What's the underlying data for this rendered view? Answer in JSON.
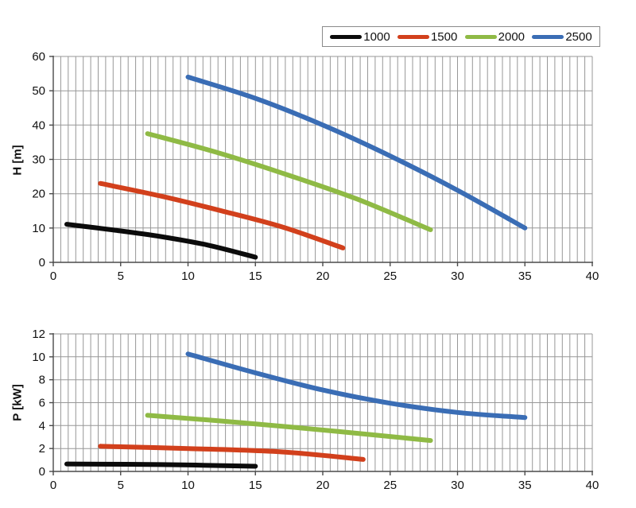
{
  "legend": {
    "items": [
      {
        "label": "1000",
        "color": "#0b0b0b"
      },
      {
        "label": "1500",
        "color": "#d2401c"
      },
      {
        "label": "2000",
        "color": "#8fba45"
      },
      {
        "label": "2500",
        "color": "#3a6db5"
      }
    ]
  },
  "colors": {
    "background": "#ffffff",
    "grid": "#979797",
    "axis": "#4a4a4a",
    "tick_text": "#111111"
  },
  "chart_data": [
    {
      "type": "line",
      "title": "",
      "xlabel": "",
      "ylabel": "H [m]",
      "xlim": [
        0,
        40
      ],
      "ylim": [
        0,
        60
      ],
      "x_ticks": [
        0,
        5,
        10,
        15,
        20,
        25,
        30,
        35,
        40
      ],
      "y_ticks": [
        0,
        10,
        20,
        30,
        40,
        50,
        60
      ],
      "grid": {
        "vertical_minor_divisions": 72,
        "horizontal_at_y_ticks": true
      },
      "legend_position": "top-right-outside",
      "series": [
        {
          "name": "1000",
          "color": "#0b0b0b",
          "points": [
            [
              1,
              11.1
            ],
            [
              4.5,
              9.4
            ],
            [
              8,
              7.5
            ],
            [
              11.5,
              5.0
            ],
            [
              15,
              1.5
            ]
          ]
        },
        {
          "name": "1500",
          "color": "#d2401c",
          "points": [
            [
              3.5,
              23
            ],
            [
              8,
              19.3
            ],
            [
              12.5,
              15
            ],
            [
              17,
              10.3
            ],
            [
              21.5,
              4.2
            ]
          ]
        },
        {
          "name": "2000",
          "color": "#8fba45",
          "points": [
            [
              7,
              37.5
            ],
            [
              12,
              32.2
            ],
            [
              17,
              26
            ],
            [
              22.5,
              18.5
            ],
            [
              28,
              9.5
            ]
          ]
        },
        {
          "name": "2500",
          "color": "#3a6db5",
          "points": [
            [
              10,
              54
            ],
            [
              15,
              47.8
            ],
            [
              20,
              40
            ],
            [
              25,
              31
            ],
            [
              30,
              21
            ],
            [
              35,
              10
            ]
          ]
        }
      ]
    },
    {
      "type": "line",
      "title": "",
      "xlabel": "",
      "ylabel": "P [kW]",
      "xlim": [
        0,
        40
      ],
      "ylim": [
        0,
        12
      ],
      "x_ticks": [
        0,
        5,
        10,
        15,
        20,
        25,
        30,
        35,
        40
      ],
      "y_ticks": [
        0,
        2,
        4,
        6,
        8,
        10,
        12
      ],
      "grid": {
        "vertical_minor_divisions": 72,
        "horizontal_at_y_ticks": true
      },
      "series": [
        {
          "name": "1000",
          "color": "#0b0b0b",
          "points": [
            [
              1,
              0.65
            ],
            [
              8,
              0.6
            ],
            [
              15,
              0.45
            ]
          ]
        },
        {
          "name": "1500",
          "color": "#d2401c",
          "points": [
            [
              3.5,
              2.2
            ],
            [
              10,
              2.0
            ],
            [
              17,
              1.7
            ],
            [
              23,
              1.05
            ]
          ]
        },
        {
          "name": "2000",
          "color": "#8fba45",
          "points": [
            [
              7,
              4.9
            ],
            [
              14,
              4.25
            ],
            [
              21,
              3.5
            ],
            [
              28,
              2.7
            ]
          ]
        },
        {
          "name": "2500",
          "color": "#3a6db5",
          "points": [
            [
              10,
              10.25
            ],
            [
              15,
              8.6
            ],
            [
              20,
              7.1
            ],
            [
              25,
              5.95
            ],
            [
              30,
              5.15
            ],
            [
              35,
              4.7
            ]
          ]
        }
      ]
    }
  ]
}
